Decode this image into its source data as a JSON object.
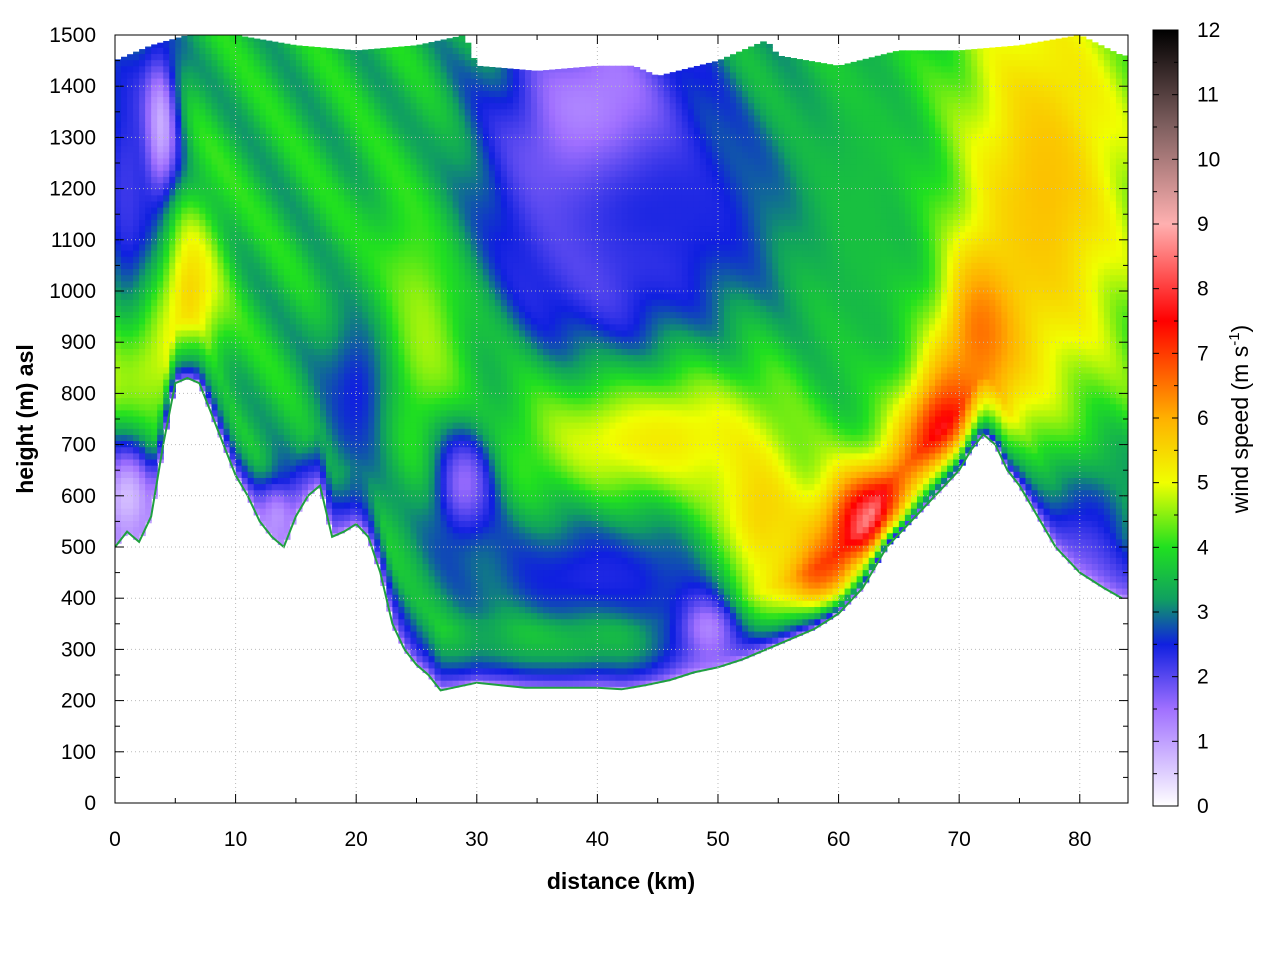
{
  "chart_data": {
    "type": "heatmap",
    "title": "",
    "xlabel": "distance (km)",
    "ylabel": "height (m) asl",
    "xlim": [
      0,
      84
    ],
    "ylim": [
      0,
      1500
    ],
    "x_ticks": [
      "0",
      "10",
      "20",
      "30",
      "40",
      "50",
      "60",
      "70",
      "80"
    ],
    "y_ticks": [
      "0",
      "100",
      "200",
      "300",
      "400",
      "500",
      "600",
      "700",
      "800",
      "900",
      "1000",
      "1100",
      "1200",
      "1300",
      "1400",
      "1500"
    ],
    "grid": true,
    "colorbar": {
      "label_prefix": "wind speed (m s",
      "label_superscript": "-1",
      "label_suffix": ")",
      "range": [
        0,
        12
      ],
      "ticks": [
        "0",
        "1",
        "2",
        "3",
        "4",
        "5",
        "6",
        "7",
        "8",
        "9",
        "10",
        "11",
        "12"
      ],
      "colors": [
        "#ffffff",
        "#a070ff",
        "#1020e0",
        "#10a060",
        "#20e020",
        "#f0ff00",
        "#ffb000",
        "#ff0000",
        "#ffb0b0",
        "#806060",
        "#000000"
      ],
      "color_stops": [
        0,
        1.5,
        2.5,
        3.2,
        4,
        5,
        6,
        7.5,
        9,
        10.5,
        12
      ]
    },
    "terrain": {
      "x": [
        0,
        1,
        2,
        3,
        4,
        5,
        6,
        7,
        8,
        9,
        10,
        11,
        12,
        13,
        14,
        15,
        16,
        17,
        18,
        19,
        20,
        21,
        22,
        23,
        24,
        25,
        26,
        27,
        28,
        30,
        32,
        34,
        36,
        38,
        40,
        42,
        44,
        46,
        48,
        50,
        52,
        54,
        56,
        58,
        60,
        62,
        64,
        66,
        68,
        70,
        71,
        72,
        73,
        74,
        75,
        76,
        78,
        80,
        82,
        83.5
      ],
      "y": [
        500,
        530,
        510,
        560,
        700,
        820,
        830,
        820,
        760,
        700,
        640,
        600,
        550,
        520,
        500,
        560,
        600,
        620,
        520,
        530,
        545,
        520,
        450,
        350,
        300,
        270,
        250,
        220,
        225,
        235,
        230,
        225,
        225,
        225,
        225,
        222,
        230,
        240,
        255,
        265,
        280,
        300,
        320,
        340,
        370,
        420,
        500,
        550,
        600,
        650,
        690,
        720,
        700,
        650,
        620,
        580,
        500,
        450,
        420,
        400
      ]
    },
    "top_cap": {
      "x": [
        0,
        3,
        6,
        10,
        15,
        20,
        25,
        29,
        30,
        35,
        40,
        43,
        45,
        50,
        54,
        55,
        60,
        65,
        70,
        75,
        80,
        83.5
      ],
      "y": [
        1450,
        1480,
        1500,
        1500,
        1480,
        1470,
        1480,
        1500,
        1440,
        1430,
        1440,
        1440,
        1420,
        1450,
        1490,
        1460,
        1440,
        1470,
        1470,
        1480,
        1500,
        1460
      ]
    },
    "features": [
      {
        "x": 64,
        "y": 540,
        "sx": 4,
        "sy": 90,
        "v": 10.5,
        "name": "jet core"
      },
      {
        "x": 59,
        "y": 420,
        "sx": 4,
        "sy": 60,
        "v": 9.0,
        "name": "jet lower"
      },
      {
        "x": 69,
        "y": 720,
        "sx": 3,
        "sy": 110,
        "v": 8.8,
        "name": "jet upper"
      },
      {
        "x": 72,
        "y": 940,
        "sx": 2.5,
        "sy": 120,
        "v": 7.6,
        "name": "jet top"
      },
      {
        "x": 53,
        "y": 500,
        "sx": 3,
        "sy": 150,
        "v": 6.5,
        "name": "jet edge"
      },
      {
        "x": 77,
        "y": 1200,
        "sx": 6,
        "sy": 350,
        "v": 5.8,
        "name": "upper right yellow"
      },
      {
        "x": 44,
        "y": 720,
        "sx": 8,
        "sy": 110,
        "v": 5.6,
        "name": "center yellow"
      },
      {
        "x": 1,
        "y": 880,
        "sx": 3,
        "sy": 130,
        "v": 6.1,
        "name": "left orange"
      },
      {
        "x": 6,
        "y": 1000,
        "sx": 2,
        "sy": 120,
        "v": 5.6,
        "name": "left orange upper"
      },
      {
        "x": 25,
        "y": 950,
        "sx": 3.5,
        "sy": 180,
        "v": 5.0,
        "name": "mid yellow"
      },
      {
        "x": 40,
        "y": 1250,
        "sx": 6,
        "sy": 230,
        "v": 0.4,
        "name": "upper calm"
      },
      {
        "x": 45,
        "y": 1150,
        "sx": 10,
        "sy": 150,
        "v": 2.4,
        "name": "upper blue"
      },
      {
        "x": 3.5,
        "y": 1320,
        "sx": 1.2,
        "sy": 110,
        "v": 0.1,
        "name": "left top calm"
      },
      {
        "x": 1,
        "y": 1200,
        "sx": 2,
        "sy": 250,
        "v": 2.2,
        "name": "left top blue"
      },
      {
        "x": 1,
        "y": 590,
        "sx": 2,
        "sy": 90,
        "v": 0.6,
        "name": "left low calm"
      },
      {
        "x": 13.5,
        "y": 560,
        "sx": 1.5,
        "sy": 60,
        "v": 1.2,
        "name": "purple low"
      },
      {
        "x": 20,
        "y": 800,
        "sx": 2.5,
        "sy": 150,
        "v": 2.5,
        "name": "mid blue"
      },
      {
        "x": 29,
        "y": 620,
        "sx": 2,
        "sy": 90,
        "v": 1.5,
        "name": "purple pocket"
      },
      {
        "x": 40,
        "y": 440,
        "sx": 9,
        "sy": 100,
        "v": 2.4,
        "name": "lower blue"
      },
      {
        "x": 49,
        "y": 330,
        "sx": 2,
        "sy": 60,
        "v": 0.9,
        "name": "calm near ground"
      },
      {
        "x": 36,
        "y": 280,
        "sx": 8,
        "sy": 50,
        "v": 4.2,
        "name": "low green"
      },
      {
        "x": 81,
        "y": 520,
        "sx": 3,
        "sy": 120,
        "v": 2.4,
        "name": "right low blue"
      },
      {
        "x": 62,
        "y": 1150,
        "sx": 4,
        "sy": 300,
        "v": 3.6,
        "name": "upper green"
      }
    ]
  }
}
